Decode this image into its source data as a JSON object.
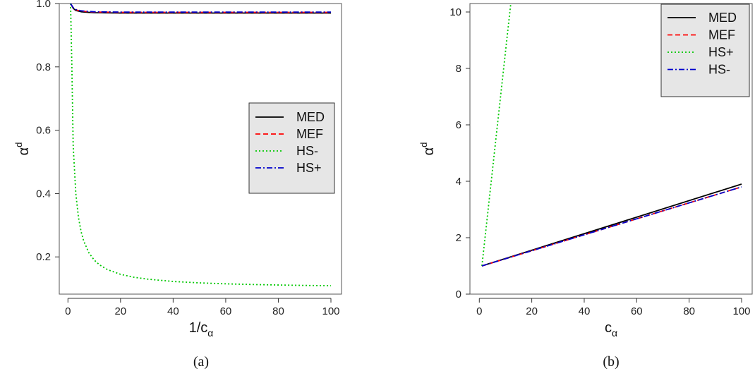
{
  "chart_data": [
    {
      "type": "line",
      "caption": "(a)",
      "xlabel": "1/c",
      "xlabel_sub": "α",
      "ylabel": "α",
      "ylabel_sup": "d",
      "xlim": [
        1,
        100
      ],
      "ylim": [
        0.0825,
        1.0
      ],
      "xticks": [
        0,
        20,
        40,
        60,
        80,
        100
      ],
      "yticks": [
        0.2,
        0.4,
        0.6,
        0.8,
        1.0
      ],
      "ytick_labels": [
        "0.2",
        "0.4",
        "0.6",
        "0.8",
        "1.0"
      ],
      "grid": false,
      "legend": "center-right",
      "legend_entries": [
        "MED",
        "MEF",
        "HS-",
        "HS+"
      ],
      "series": [
        {
          "name": "MED",
          "color": "#000000",
          "dash": "solid",
          "x": [
            1,
            2,
            3,
            5,
            8,
            10,
            20,
            40,
            60,
            80,
            100
          ],
          "y": [
            1.0,
            0.985,
            0.978,
            0.974,
            0.972,
            0.971,
            0.97,
            0.97,
            0.97,
            0.97,
            0.97
          ]
        },
        {
          "name": "MEF",
          "color": "#ff0000",
          "dash": "dashed",
          "x": [
            1,
            2,
            3,
            5,
            8,
            10,
            20,
            40,
            60,
            80,
            100
          ],
          "y": [
            1.0,
            0.986,
            0.98,
            0.976,
            0.974,
            0.973,
            0.972,
            0.972,
            0.972,
            0.972,
            0.972
          ]
        },
        {
          "name": "HS-",
          "color": "#00c800",
          "dash": "dotted",
          "x": [
            1,
            1.5,
            2,
            3,
            4,
            5,
            6,
            8,
            10,
            12,
            15,
            20,
            25,
            30,
            40,
            50,
            60,
            70,
            80,
            90,
            100
          ],
          "y": [
            1.0,
            0.8,
            0.55,
            0.4,
            0.325,
            0.28,
            0.25,
            0.2125,
            0.19,
            0.175,
            0.16,
            0.145,
            0.136,
            0.13,
            0.1225,
            0.118,
            0.115,
            0.1129,
            0.1113,
            0.11,
            0.109
          ]
        },
        {
          "name": "HS+",
          "color": "#0000cc",
          "dash": "dashdot",
          "x": [
            1,
            2,
            3,
            5,
            8,
            10,
            20,
            40,
            60,
            80,
            100
          ],
          "y": [
            1.0,
            0.987,
            0.981,
            0.977,
            0.975,
            0.974,
            0.973,
            0.973,
            0.973,
            0.973,
            0.973
          ]
        }
      ]
    },
    {
      "type": "line",
      "caption": "(b)",
      "xlabel": "c",
      "xlabel_sub": "α",
      "ylabel": "α",
      "ylabel_sup": "d",
      "xlim": [
        1,
        100
      ],
      "ylim": [
        0,
        10.3
      ],
      "xticks": [
        0,
        20,
        40,
        60,
        80,
        100
      ],
      "yticks": [
        0,
        2,
        4,
        6,
        8,
        10
      ],
      "ytick_labels": [
        "0",
        "2",
        "4",
        "6",
        "8",
        "10"
      ],
      "grid": false,
      "legend": "top-right",
      "legend_entries": [
        "MED",
        "MEF",
        "HS+",
        "HS-"
      ],
      "series": [
        {
          "name": "MED",
          "color": "#000000",
          "dash": "solid",
          "x": [
            1,
            100
          ],
          "y": [
            1.0,
            3.9
          ]
        },
        {
          "name": "MEF",
          "color": "#ff0000",
          "dash": "dashed",
          "x": [
            1,
            100
          ],
          "y": [
            1.0,
            3.8
          ]
        },
        {
          "name": "HS+",
          "color": "#00c800",
          "dash": "dotted",
          "x": [
            1,
            12
          ],
          "y": [
            1.0,
            10.3
          ]
        },
        {
          "name": "HS-",
          "color": "#0000cc",
          "dash": "dashdot",
          "x": [
            1,
            100
          ],
          "y": [
            1.0,
            3.8
          ]
        }
      ]
    }
  ]
}
